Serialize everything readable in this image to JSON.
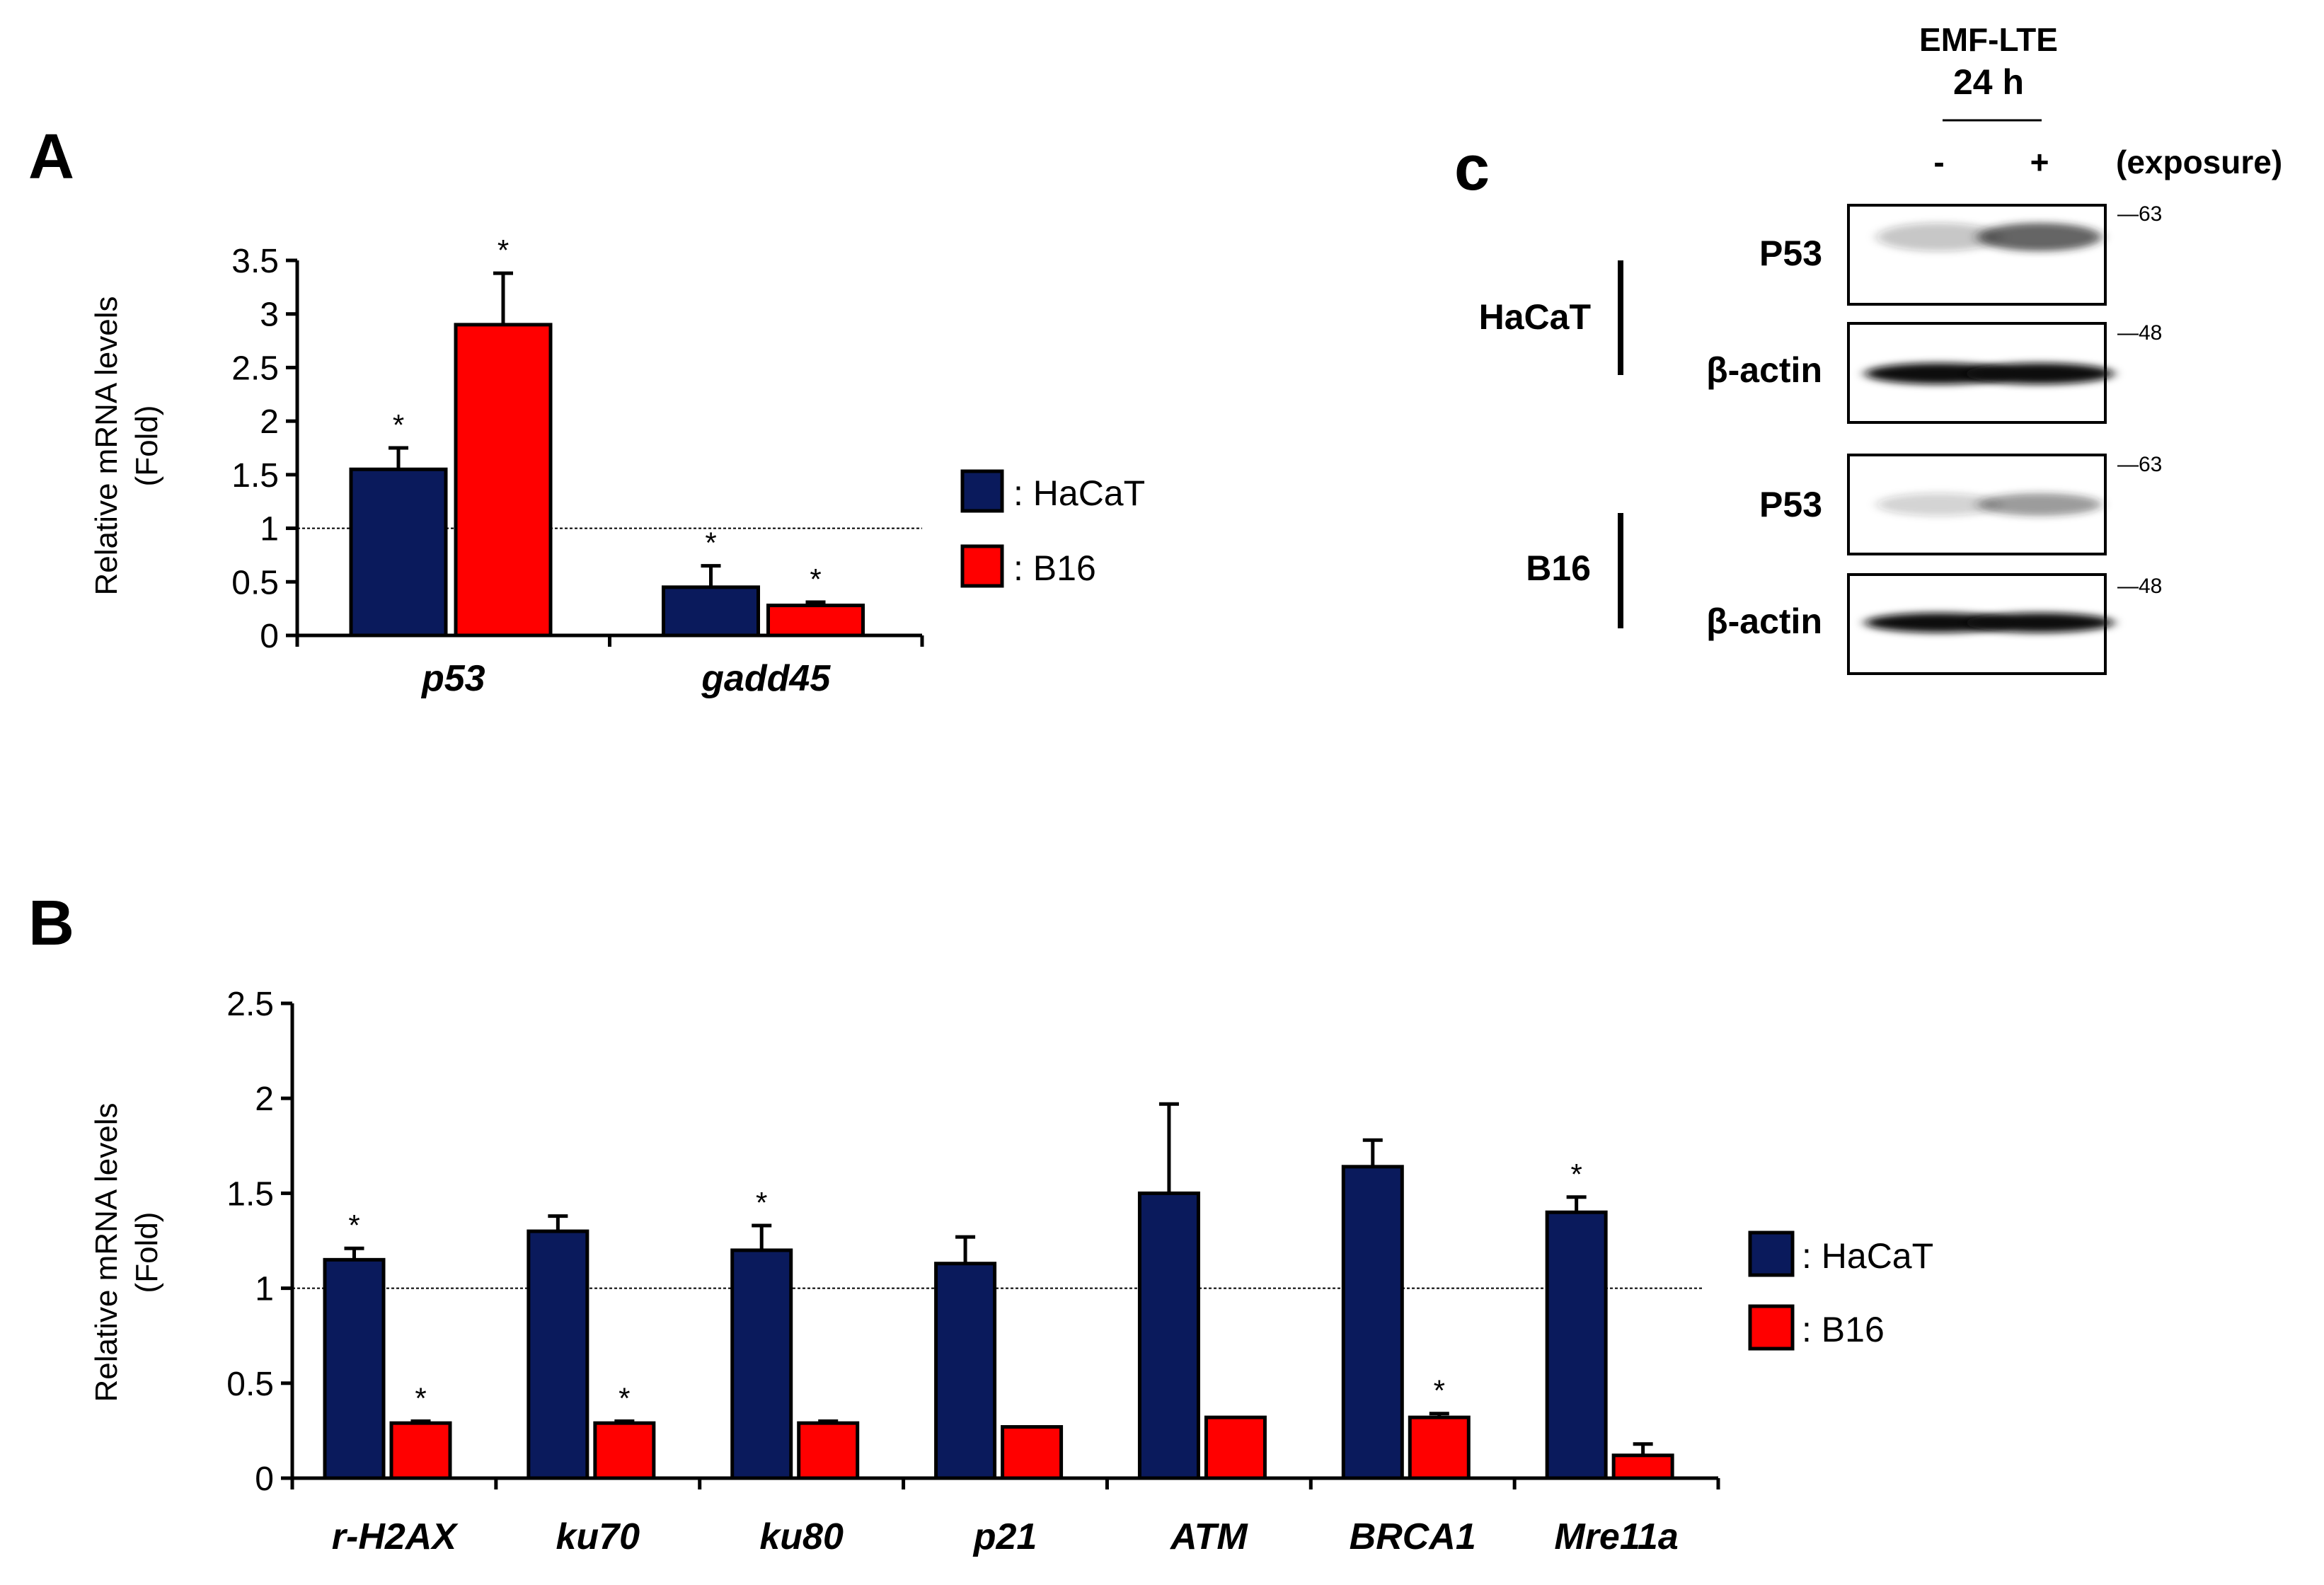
{
  "panels": {
    "a_label": "A",
    "b_label": "B",
    "c_label": "c"
  },
  "colors": {
    "hacat": "#0a1a5c",
    "b16": "#ff0000",
    "axis": "#000000"
  },
  "chart_data": [
    {
      "panel": "A",
      "type": "bar",
      "ylabel": "Relative mRNA levels",
      "ylabel2": "(Fold)",
      "ylim": [
        0,
        3.5
      ],
      "yticks": [
        0,
        0.5,
        1,
        1.5,
        2,
        2.5,
        3,
        3.5
      ],
      "ytick_labels": [
        "0",
        "0.5",
        "1",
        "1.5",
        "2",
        "2.5",
        "3",
        "3.5"
      ],
      "reference_line": 1,
      "categories": [
        "p53",
        "gadd45"
      ],
      "series": [
        {
          "name": ": HaCaT",
          "values": [
            1.55,
            0.45
          ],
          "errors": [
            0.2,
            0.2
          ],
          "significance": [
            "*",
            "*"
          ]
        },
        {
          "name": ": B16",
          "values": [
            2.9,
            0.28
          ],
          "errors": [
            0.48,
            0.03
          ],
          "significance": [
            "*",
            "*"
          ]
        }
      ]
    },
    {
      "panel": "B",
      "type": "bar",
      "ylabel": "Relative mRNA levels",
      "ylabel2": "(Fold)",
      "ylim": [
        0,
        2.5
      ],
      "yticks": [
        0,
        0.5,
        1,
        1.5,
        2,
        2.5
      ],
      "ytick_labels": [
        "0",
        "0.5",
        "1",
        "1.5",
        "2",
        "2.5"
      ],
      "reference_line": 1,
      "categories": [
        "r-H2AX",
        "ku70",
        "ku80",
        "p21",
        "ATM",
        "BRCA1",
        "Mre11a"
      ],
      "series": [
        {
          "name": ": HaCaT",
          "values": [
            1.15,
            1.3,
            1.2,
            1.13,
            1.5,
            1.64,
            1.4
          ],
          "errors": [
            0.06,
            0.08,
            0.13,
            0.14,
            0.47,
            0.14,
            0.08
          ],
          "significance": [
            "*",
            "",
            "*",
            "",
            "",
            "",
            "*"
          ]
        },
        {
          "name": ": B16",
          "values": [
            0.29,
            0.29,
            0.29,
            0.27,
            0.32,
            0.32,
            0.12
          ],
          "errors": [
            0.01,
            0.01,
            0.01,
            0,
            0,
            0.02,
            0.06
          ],
          "significance": [
            "*",
            "*",
            "",
            "",
            "",
            "*",
            ""
          ]
        }
      ]
    }
  ],
  "blot": {
    "treatment": "EMF-LTE",
    "time": "24 h",
    "lane_minus": "-",
    "lane_plus": "+",
    "exposure_label": "(exposure)",
    "groups": [
      {
        "cell_line": "HaCaT",
        "bands": [
          {
            "label": "P53",
            "marker": "—63",
            "intensity": [
              0.25,
              0.7
            ]
          },
          {
            "label": "β-actin",
            "marker": "—48",
            "intensity": [
              1.0,
              1.0
            ]
          }
        ]
      },
      {
        "cell_line": "B16",
        "bands": [
          {
            "label": "P53",
            "marker": "—63",
            "intensity": [
              0.2,
              0.45
            ]
          },
          {
            "label": "β-actin",
            "marker": "—48",
            "intensity": [
              1.0,
              1.0
            ]
          }
        ]
      }
    ]
  }
}
